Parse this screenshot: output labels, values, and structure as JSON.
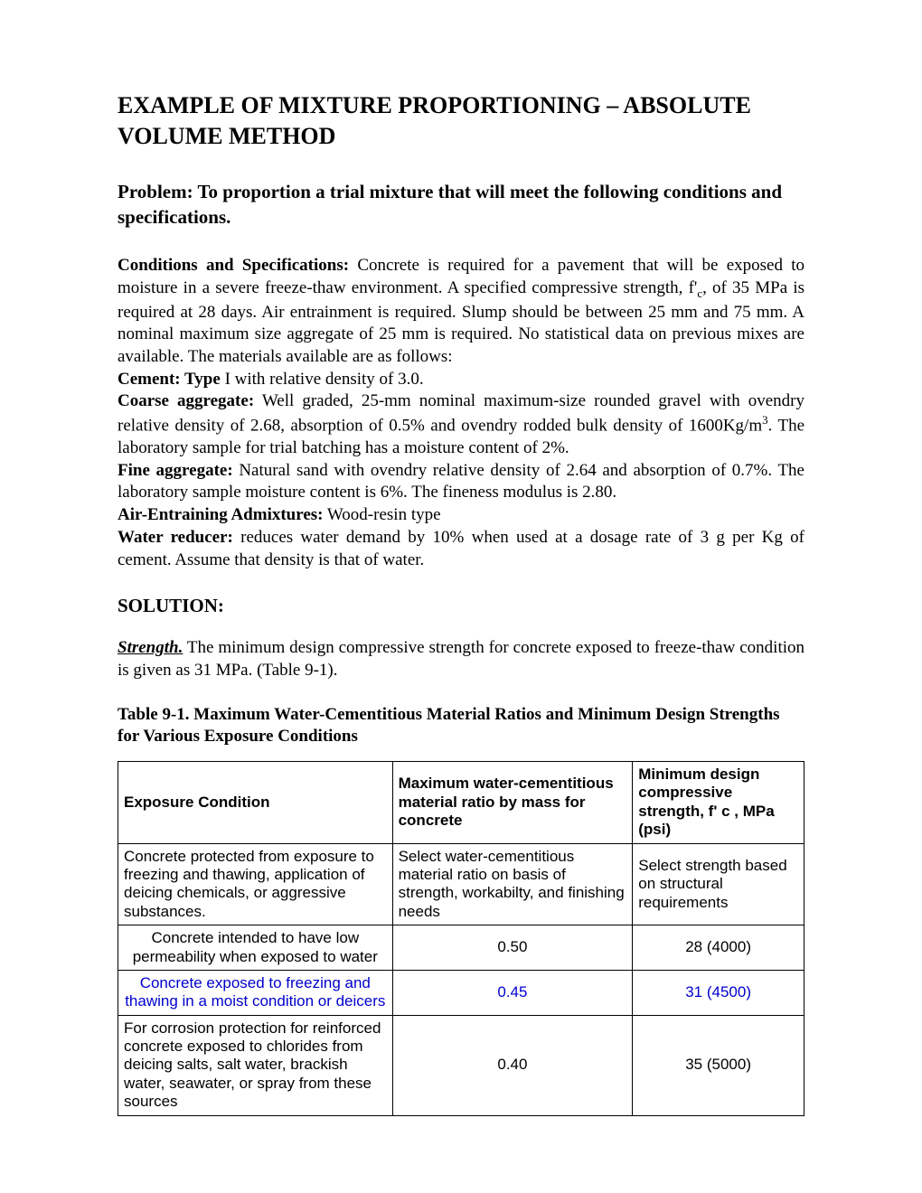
{
  "title": "EXAMPLE OF MIXTURE PROPORTIONING – ABSOLUTE VOLUME METHOD",
  "problem": "Problem:  To proportion a trial mixture that will meet the following conditions and specifications.",
  "conditions_label": "Conditions and Specifications:",
  "conditions_text": " Concrete is required for a pavement that will be exposed to moisture in a severe freeze-thaw environment. A specified compressive strength, f'",
  "conditions_sub": "c",
  "conditions_text2": ", of 35 MPa is required at 28 days. Air entrainment is required. Slump should be between 25 mm and 75 mm. A nominal maximum size aggregate of 25 mm is required. No statistical data on previous mixes are available. The materials available are as follows:",
  "cement_label": "Cement: Type",
  "cement_text": " I with relative density of 3.0.",
  "coarse_label": "Coarse aggregate:",
  "coarse_text": " Well graded, 25-mm nominal maximum-size rounded gravel with ovendry relative density of 2.68, absorption of 0.5% and ovendry rodded bulk density of 1600Kg/m",
  "coarse_sup": "3",
  "coarse_text2": ". The laboratory sample for trial batching has a moisture content of 2%.",
  "fine_label": "Fine aggregate:",
  "fine_text": " Natural sand with ovendry relative density of 2.64 and absorption of 0.7%. The laboratory sample moisture content is 6%. The fineness modulus is 2.80.",
  "air_label": "Air-Entraining Admixtures:",
  "air_text": " Wood-resin type",
  "water_label": "Water reducer:",
  "water_text": " reduces water demand by 10% when used at a dosage rate of 3 g per Kg of cement. Assume that density is that of water.",
  "solution": "SOLUTION:",
  "strength_label": "Strength.",
  "strength_text": " The minimum design compressive strength for concrete exposed to freeze-thaw condition is given as 31 MPa. (Table 9-1).",
  "table_title": " Table 9-1. Maximum Water-Cementitious Material Ratios and Minimum Design Strengths for Various Exposure Conditions",
  "table": {
    "headers": {
      "col1": "Exposure Condition",
      "col2": "Maximum water-cementitious material ratio by mass for concrete",
      "col3": "Minimum design compressive strength, f' c , MPa (psi)"
    },
    "rows": [
      {
        "c1": "Concrete protected from exposure  to freezing and thawing, application of deicing chemicals, or aggressive substances.",
        "c1_align": "left",
        "c2": "Select water-cementitious material ratio on basis of strength, workabilty, and finishing needs",
        "c2_align": "left",
        "c3": "Select strength based on structural requirements",
        "c3_align": "left",
        "highlight": false
      },
      {
        "c1": "Concrete intended to have low permeability when exposed to water",
        "c1_align": "center",
        "c2": "0.50",
        "c2_align": "center",
        "c3": "28 (4000)",
        "c3_align": "center",
        "highlight": false
      },
      {
        "c1": "Concrete exposed to freezing and thawing in a moist condition or deicers",
        "c1_align": "center",
        "c2": "0.45",
        "c2_align": "center",
        "c3": "31 (4500)",
        "c3_align": "center",
        "highlight": true
      },
      {
        "c1": "For corrosion protection for reinforced concrete exposed to chlorides from deicing salts, salt water, brackish water, seawater, or spray from these sources",
        "c1_align": "left",
        "c2": "0.40",
        "c2_align": "center",
        "c3": "35 (5000)",
        "c3_align": "center",
        "highlight": false
      }
    ]
  }
}
